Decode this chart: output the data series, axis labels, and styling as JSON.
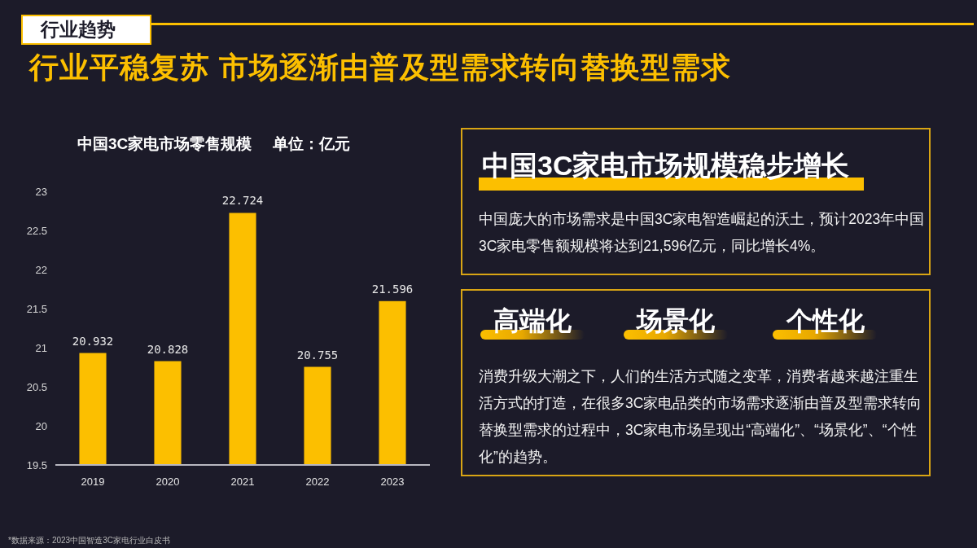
{
  "chart_data": {
    "type": "bar",
    "title": "中国3C家电市场零售规模",
    "subtitle": "单位：亿元",
    "categories": [
      "2019",
      "2020",
      "2021",
      "2022",
      "2023"
    ],
    "values": [
      20.932,
      20.828,
      22.724,
      20.755,
      21.596
    ],
    "color": "#fcbf00",
    "ylim": [
      19.5,
      23
    ],
    "yticks": [
      19.5,
      20,
      20.5,
      21,
      21.5,
      22,
      22.5,
      23
    ],
    "data_labels": true,
    "annotations": [
      "行业趋势",
      "行业平稳复苏 市场逐渐由普及型需求转向替换型需求",
      "中国3C家电市场规模稳步增长",
      "中国庞大的市场需求是中国3C家电智造崛起的沃土，预计2023年中国3C家电零售额规模将达到21,596亿元，同比增长4%。",
      "高端化",
      "场景化",
      "个性化",
      "消费升级大潮之下，人们的生活方式随之变革，消费者越来越注重生活方式的打造，在很多3C家电品类的市场需求逐渐由普及型需求转向替换型需求的过程中，3C家电市场呈现出“高端化”、“场景化”、“个性化”的趋势。",
      "*数据来源：2023中国智造3C家电行业白皮书"
    ]
  }
}
